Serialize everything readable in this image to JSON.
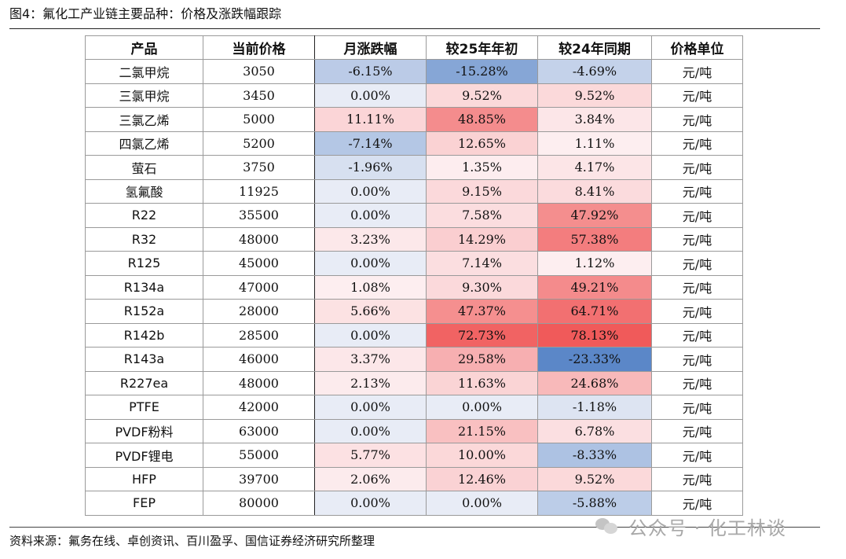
{
  "figure_title": "图4：氟化工产业链主要品种：价格及涨跌幅跟踪",
  "source_note": "资料来源：氟务在线、卓创资讯、百川盈孚、国信证券经济研究所整理",
  "watermark_text": "公众号 · 化工林谈",
  "watermark_icon": "wechat-icon",
  "chart_data": {
    "type": "table",
    "title": "图4：氟化工产业链主要品种：价格及涨跌幅跟踪",
    "columns": [
      "产品",
      "当前价格",
      "月涨跌幅",
      "较25年年初",
      "较24年同期",
      "价格单位"
    ],
    "colors": {
      "negative": "#5b87c8",
      "positive": "#f05a5a",
      "neutral": "#ffffff"
    },
    "rows": [
      {
        "product": "二氯甲烷",
        "price": "3050",
        "mom": "-6.15%",
        "ytd": "-15.28%",
        "yoy": "-4.69%",
        "unit": "元/吨"
      },
      {
        "product": "三氯甲烷",
        "price": "3450",
        "mom": "0.00%",
        "ytd": "9.52%",
        "yoy": "9.52%",
        "unit": "元/吨"
      },
      {
        "product": "三氯乙烯",
        "price": "5000",
        "mom": "11.11%",
        "ytd": "48.85%",
        "yoy": "3.84%",
        "unit": "元/吨"
      },
      {
        "product": "四氯乙烯",
        "price": "5200",
        "mom": "-7.14%",
        "ytd": "12.65%",
        "yoy": "1.11%",
        "unit": "元/吨"
      },
      {
        "product": "萤石",
        "price": "3750",
        "mom": "-1.96%",
        "ytd": "1.35%",
        "yoy": "4.17%",
        "unit": "元/吨"
      },
      {
        "product": "氢氟酸",
        "price": "11925",
        "mom": "0.00%",
        "ytd": "9.15%",
        "yoy": "8.41%",
        "unit": "元/吨"
      },
      {
        "product": "R22",
        "price": "35500",
        "mom": "0.00%",
        "ytd": "7.58%",
        "yoy": "47.92%",
        "unit": "元/吨"
      },
      {
        "product": "R32",
        "price": "48000",
        "mom": "3.23%",
        "ytd": "14.29%",
        "yoy": "57.38%",
        "unit": "元/吨"
      },
      {
        "product": "R125",
        "price": "45000",
        "mom": "0.00%",
        "ytd": "7.14%",
        "yoy": "1.12%",
        "unit": "元/吨"
      },
      {
        "product": "R134a",
        "price": "47000",
        "mom": "1.08%",
        "ytd": "9.30%",
        "yoy": "49.21%",
        "unit": "元/吨"
      },
      {
        "product": "R152a",
        "price": "28000",
        "mom": "5.66%",
        "ytd": "47.37%",
        "yoy": "64.71%",
        "unit": "元/吨"
      },
      {
        "product": "R142b",
        "price": "28500",
        "mom": "0.00%",
        "ytd": "72.73%",
        "yoy": "78.13%",
        "unit": "元/吨"
      },
      {
        "product": "R143a",
        "price": "46000",
        "mom": "3.37%",
        "ytd": "29.58%",
        "yoy": "-23.33%",
        "unit": "元/吨"
      },
      {
        "product": "R227ea",
        "price": "48000",
        "mom": "2.13%",
        "ytd": "11.63%",
        "yoy": "24.68%",
        "unit": "元/吨"
      },
      {
        "product": "PTFE",
        "price": "42000",
        "mom": "0.00%",
        "ytd": "0.00%",
        "yoy": "-1.18%",
        "unit": "元/吨"
      },
      {
        "product": "PVDF粉料",
        "price": "63000",
        "mom": "0.00%",
        "ytd": "21.15%",
        "yoy": "6.78%",
        "unit": "元/吨"
      },
      {
        "product": "PVDF锂电",
        "price": "55000",
        "mom": "5.77%",
        "ytd": "10.00%",
        "yoy": "-8.33%",
        "unit": "元/吨"
      },
      {
        "product": "HFP",
        "price": "39700",
        "mom": "2.06%",
        "ytd": "12.46%",
        "yoy": "9.52%",
        "unit": "元/吨"
      },
      {
        "product": "FEP",
        "price": "80000",
        "mom": "0.00%",
        "ytd": "0.00%",
        "yoy": "-5.88%",
        "unit": "元/吨"
      }
    ]
  }
}
